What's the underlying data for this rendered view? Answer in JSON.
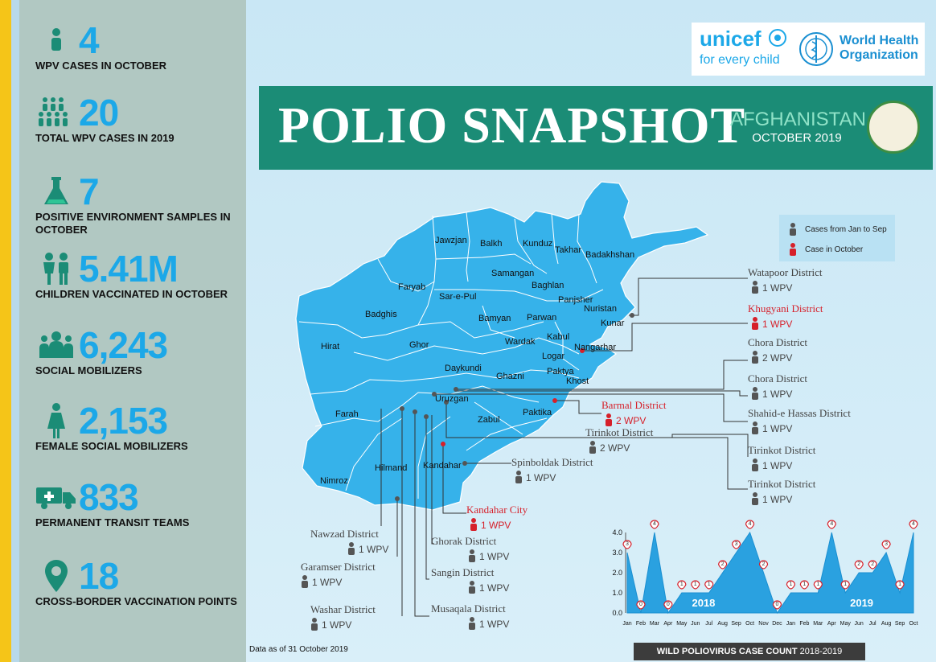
{
  "stats": [
    {
      "value": "4",
      "label": "WPV CASES IN OCTOBER",
      "icon": "person-icon"
    },
    {
      "value": "20",
      "label": "TOTAL WPV CASES IN 2019",
      "icon": "people-group-icon"
    },
    {
      "value": "7",
      "label": "POSITIVE ENVIRONMENT SAMPLES IN OCTOBER",
      "icon": "flask-icon"
    },
    {
      "value": "5.41M",
      "label": "CHILDREN VACCINATED IN OCTOBER",
      "icon": "children-icon"
    },
    {
      "value": "6,243",
      "label": "SOCIAL MOBILIZERS",
      "icon": "crowd-icon"
    },
    {
      "value": "2,153",
      "label": "FEMALE SOCIAL MOBILIZERS",
      "icon": "female-icon"
    },
    {
      "value": "833",
      "label": "PERMANENT TRANSIT TEAMS",
      "icon": "ambulance-icon"
    },
    {
      "value": "18",
      "label": "CROSS-BORDER VACCINATION POINTS",
      "icon": "location-pin-icon"
    }
  ],
  "logos": {
    "unicef": "unicef",
    "unicef_tagline": "for every child",
    "who_line1": "World Health",
    "who_line2": "Organization"
  },
  "banner": {
    "title": "POLIO SNAPSHOT",
    "country": "AFGHANISTAN",
    "period": "OCTOBER 2019"
  },
  "legend": {
    "jan_sep": "Cases from Jan to Sep",
    "october": "Case in October"
  },
  "provinces": [
    {
      "n": "Jawzjan"
    },
    {
      "n": "Balkh"
    },
    {
      "n": "Kunduz"
    },
    {
      "n": "Takhar"
    },
    {
      "n": "Badakhshan"
    },
    {
      "n": "Samangan"
    },
    {
      "n": "Faryab"
    },
    {
      "n": "Baghlan"
    },
    {
      "n": "Sar-e-Pul"
    },
    {
      "n": "Panjsher"
    },
    {
      "n": "Nuristan"
    },
    {
      "n": "Badghis"
    },
    {
      "n": "Bamyan"
    },
    {
      "n": "Parwan"
    },
    {
      "n": "Kunar"
    },
    {
      "n": "Kabul"
    },
    {
      "n": "Wardak"
    },
    {
      "n": "Nangarhar"
    },
    {
      "n": "Hirat"
    },
    {
      "n": "Ghor"
    },
    {
      "n": "Logar"
    },
    {
      "n": "Daykundi"
    },
    {
      "n": "Paktya"
    },
    {
      "n": "Ghazni"
    },
    {
      "n": "Khost"
    },
    {
      "n": "Uruzgan"
    },
    {
      "n": "Farah"
    },
    {
      "n": "Paktika"
    },
    {
      "n": "Zabul"
    },
    {
      "n": "Kandahar"
    },
    {
      "n": "Hilmand"
    },
    {
      "n": "Nimroz"
    }
  ],
  "districts": [
    {
      "name": "Watapoor District",
      "count": "1 WPV",
      "october": false
    },
    {
      "name": "Khugyani District",
      "count": "1 WPV",
      "october": true
    },
    {
      "name": "Chora District",
      "count": "2 WPV",
      "october": false
    },
    {
      "name": "Chora District",
      "count": "1 WPV",
      "october": false
    },
    {
      "name": "Shahid-e Hassas District",
      "count": "1 WPV",
      "october": false
    },
    {
      "name": "Tirinkot District",
      "count": "1 WPV",
      "october": false
    },
    {
      "name": "Tirinkot District",
      "count": "1 WPV",
      "october": false
    },
    {
      "name": "Barmal District",
      "count": "2 WPV",
      "october": true
    },
    {
      "name": "Tirinkot District",
      "count": "2 WPV",
      "october": false
    },
    {
      "name": "Spinboldak District",
      "count": "1 WPV",
      "october": false
    },
    {
      "name": "Kandahar City",
      "count": "1 WPV",
      "october": true
    },
    {
      "name": "Nawzad District",
      "count": "1 WPV",
      "october": false
    },
    {
      "name": "Ghorak District",
      "count": "1 WPV",
      "october": false
    },
    {
      "name": "Garamser District",
      "count": "1 WPV",
      "october": false
    },
    {
      "name": "Sangin District",
      "count": "1 WPV",
      "october": false
    },
    {
      "name": "Washar District",
      "count": "1 WPV",
      "october": false
    },
    {
      "name": "Musaqala District",
      "count": "1 WPV",
      "october": false
    }
  ],
  "footer": {
    "data_note": "Data as of 31 October 2019",
    "chart_caption_bold": "WILD POLIOVIRUS CASE COUNT",
    "chart_caption_years": "2018-2019"
  },
  "chart_data": {
    "type": "area",
    "x": [
      "Jan",
      "Feb",
      "Mar",
      "Apr",
      "May",
      "Jun",
      "Jul",
      "Aug",
      "Sep",
      "Oct",
      "Nov",
      "Dec",
      "Jan",
      "Feb",
      "Mar",
      "Apr",
      "May",
      "Jun",
      "Jul",
      "Aug",
      "Sep",
      "Oct"
    ],
    "year_labels": [
      "2018",
      "2019"
    ],
    "series": [
      {
        "values": [
          3,
          0,
          4,
          0,
          1,
          1,
          1,
          2,
          3,
          4,
          2,
          0,
          1,
          1,
          1,
          4,
          1,
          2,
          2,
          3,
          1,
          4
        ]
      }
    ],
    "yticks": [
      "0.0",
      "1.0",
      "2.0",
      "3.0",
      "4.0"
    ],
    "ylim": [
      0,
      4
    ],
    "colors": {
      "fill": "#2aa1e0",
      "marker": "#d6202a"
    }
  },
  "colors": {
    "accent": "#1ca8e8",
    "banner": "#1b8c76",
    "red": "#d6202a",
    "sidebar": "#b1c8c2"
  }
}
